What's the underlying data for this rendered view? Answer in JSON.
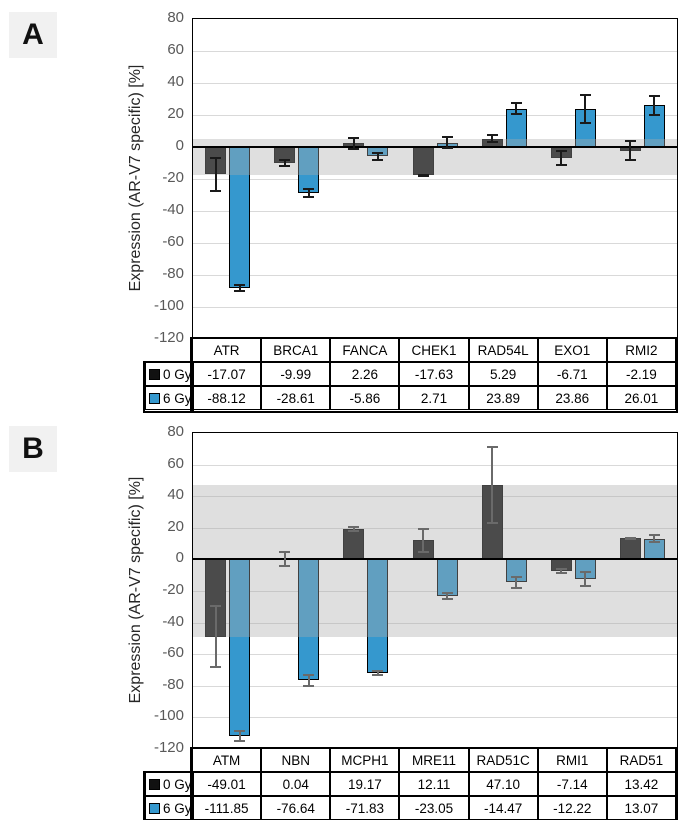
{
  "panels": [
    {
      "label": "A",
      "legend": [
        {
          "label": "0 Gy",
          "swatch_color": "#111111"
        },
        {
          "label": "6 Gy",
          "swatch_color": "#3598ce"
        }
      ]
    },
    {
      "label": "B",
      "legend": [
        {
          "label": "0 Gy",
          "swatch_color": "#111111"
        },
        {
          "label": "6 Gy",
          "swatch_color": "#3598ce"
        }
      ]
    }
  ],
  "chart_data": [
    {
      "type": "bar",
      "panel": "A",
      "title": "",
      "ylabel": "Expression (AR-V7 specific) [%]",
      "categories": [
        "ATR",
        "BRCA1",
        "FANCA",
        "CHEK1",
        "RAD54L",
        "EXO1",
        "RMI2"
      ],
      "series": [
        {
          "name": "0 Gy",
          "color": "#111111",
          "values": [
            -17.07,
            -9.99,
            2.26,
            -17.63,
            5.29,
            -6.71,
            -2.19
          ],
          "errors": [
            11,
            2.5,
            4,
            1,
            3,
            5,
            6.5
          ]
        },
        {
          "name": "6 Gy",
          "color": "#3598ce",
          "values": [
            -88.12,
            -28.61,
            -5.86,
            2.71,
            23.89,
            23.86,
            26.01
          ],
          "errors": [
            2.5,
            3,
            3,
            4,
            4,
            9.5,
            6.5
          ]
        }
      ],
      "ylim": [
        -120,
        80
      ],
      "ytick_step": 20,
      "grid": true,
      "highlight_band": {
        "low": -17.63,
        "high": 5.29
      },
      "error_bar_color": "#1a1a1a",
      "legend_position": "table-left"
    },
    {
      "type": "bar",
      "panel": "B",
      "title": "",
      "ylabel": "Expression (AR-V7 specific) [%]",
      "categories": [
        "ATM",
        "NBN",
        "MCPH1",
        "MRE11",
        "RAD51C",
        "RMI1",
        "RAD51"
      ],
      "series": [
        {
          "name": "0 Gy",
          "color": "#111111",
          "values": [
            -49.01,
            0.04,
            19.17,
            12.11,
            47.1,
            -7.14,
            13.42
          ],
          "errors": [
            20,
            5,
            2,
            8,
            24.5,
            2,
            1
          ]
        },
        {
          "name": "6 Gy",
          "color": "#3598ce",
          "values": [
            -111.85,
            -76.64,
            -71.83,
            -23.05,
            -14.47,
            -12.22,
            13.07
          ],
          "errors": [
            4,
            4,
            2,
            2.5,
            4,
            5,
            3
          ]
        }
      ],
      "ylim": [
        -120,
        80
      ],
      "ytick_step": 20,
      "grid": true,
      "highlight_band": {
        "low": -49.01,
        "high": 47.1
      },
      "error_bar_color": "#6a6a6a",
      "legend_position": "table-left"
    }
  ],
  "colors": {
    "bar_0gy": "#111111",
    "bar_6gy": "#3598ce",
    "band": "#e4e4e4",
    "gridline": "#d9d9d9",
    "axis": "#000000",
    "tick_text": "#595959"
  }
}
